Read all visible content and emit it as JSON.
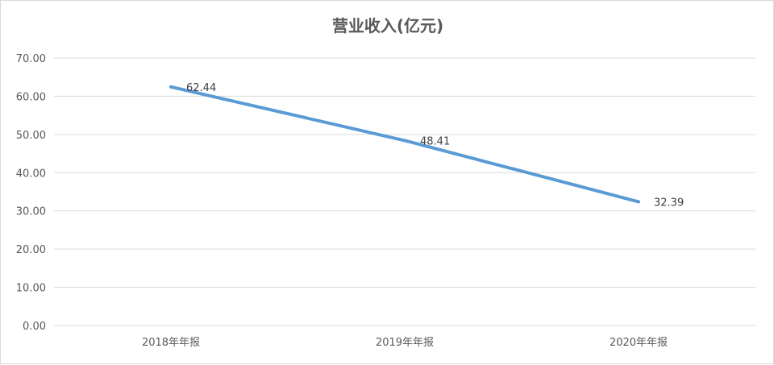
{
  "chart_data": {
    "type": "line",
    "title": "营业收入(亿元)",
    "categories": [
      "2018年年报",
      "2019年年报",
      "2020年年报"
    ],
    "series": [
      {
        "values": [
          62.44,
          48.41,
          32.39
        ],
        "color": "#5b9bd5"
      }
    ],
    "data_labels": [
      "62.44",
      "48.41",
      "32.39"
    ],
    "ylim": [
      0,
      70
    ],
    "yticks": [
      "0.00",
      "10.00",
      "20.00",
      "30.00",
      "40.00",
      "50.00",
      "60.00",
      "70.00"
    ],
    "grid": true,
    "legend": "none"
  }
}
